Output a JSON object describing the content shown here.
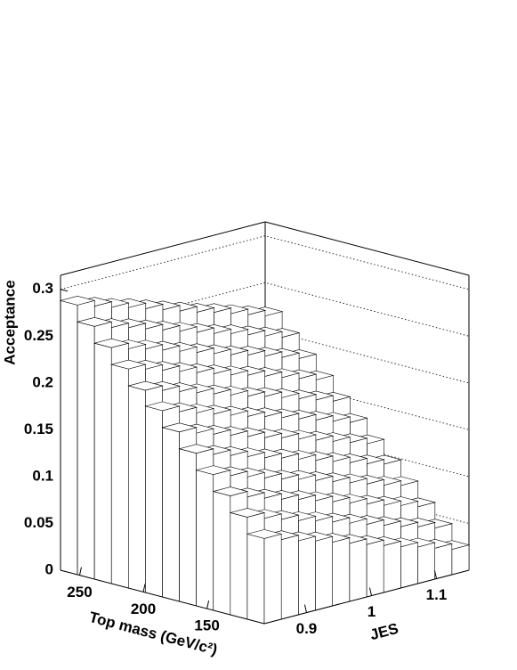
{
  "chart_data": {
    "type": "lego",
    "xlabel": "Top mass (GeV/c²)",
    "ylabel": "JES",
    "zlabel": "Acceptance",
    "xlim": [
      105,
      265
    ],
    "ylim": [
      0.835,
      1.15
    ],
    "zlim": [
      0,
      0.315
    ],
    "xticks": [
      150,
      200,
      250
    ],
    "yticks": [
      0.9,
      1,
      1.1
    ],
    "zticks": [
      0,
      0.05,
      0.1,
      0.15,
      0.2,
      0.25,
      0.3
    ],
    "color": "#ffffff",
    "grid": true,
    "z": [
      [
        0.091,
        0.085,
        0.079,
        0.074,
        0.068,
        0.062,
        0.056,
        0.05,
        0.044,
        0.039,
        0.033,
        0.027
      ],
      [
        0.109,
        0.103,
        0.097,
        0.091,
        0.086,
        0.08,
        0.074,
        0.068,
        0.062,
        0.056,
        0.051,
        0.045
      ],
      [
        0.127,
        0.121,
        0.115,
        0.109,
        0.104,
        0.098,
        0.092,
        0.086,
        0.08,
        0.074,
        0.069,
        0.063
      ],
      [
        0.145,
        0.139,
        0.133,
        0.127,
        0.121,
        0.116,
        0.11,
        0.104,
        0.098,
        0.092,
        0.086,
        0.081
      ],
      [
        0.163,
        0.157,
        0.151,
        0.145,
        0.139,
        0.134,
        0.128,
        0.122,
        0.116,
        0.11,
        0.104,
        0.099
      ],
      [
        0.181,
        0.175,
        0.169,
        0.163,
        0.157,
        0.151,
        0.146,
        0.14,
        0.134,
        0.128,
        0.122,
        0.116
      ],
      [
        0.199,
        0.193,
        0.187,
        0.181,
        0.175,
        0.169,
        0.164,
        0.158,
        0.152,
        0.146,
        0.14,
        0.134
      ],
      [
        0.216,
        0.211,
        0.205,
        0.199,
        0.193,
        0.187,
        0.181,
        0.176,
        0.17,
        0.164,
        0.158,
        0.152
      ],
      [
        0.234,
        0.229,
        0.223,
        0.217,
        0.211,
        0.205,
        0.199,
        0.194,
        0.188,
        0.182,
        0.176,
        0.17
      ],
      [
        0.252,
        0.246,
        0.241,
        0.235,
        0.229,
        0.223,
        0.217,
        0.211,
        0.206,
        0.2,
        0.194,
        0.188
      ],
      [
        0.27,
        0.264,
        0.259,
        0.253,
        0.247,
        0.241,
        0.235,
        0.229,
        0.224,
        0.218,
        0.212,
        0.206
      ],
      [
        0.288,
        0.282,
        0.276,
        0.271,
        0.265,
        0.259,
        0.253,
        0.247,
        0.242,
        0.236,
        0.23,
        0.224
      ]
    ]
  }
}
